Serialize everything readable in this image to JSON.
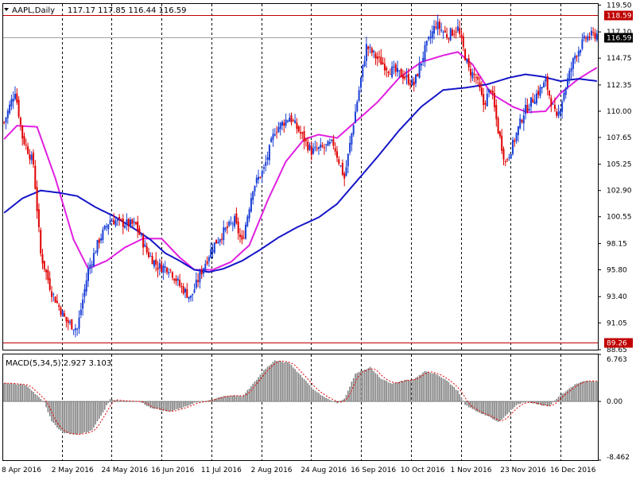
{
  "header": {
    "symbol": "AAPL,Daily",
    "ohlc": "117.17 117.85 116.44 116.59"
  },
  "macd": {
    "label": "MACD(5,34,5) 2.927 3.103"
  },
  "colors": {
    "bull_candle": "#1a3fd6",
    "bear_candle": "#e00000",
    "ma_fast": "#e020e0",
    "ma_slow": "#1616c8",
    "hline": "#c00000",
    "histogram": "#808080",
    "signal": "#e00000",
    "frame": "#000000",
    "grid": "#000000"
  },
  "chart_data": [
    {
      "type": "candlestick",
      "name": "price",
      "ylim": [
        88.65,
        119.6
      ],
      "y_ticks": [
        "119.50",
        "117.10",
        "114.75",
        "112.35",
        "110.00",
        "107.65",
        "105.25",
        "102.90",
        "100.55",
        "98.15",
        "95.80",
        "93.40",
        "91.05",
        "88.65"
      ],
      "x_ticks": [
        "8 Apr 2016",
        "2 May 2016",
        "24 May 2016",
        "16 Jun 2016",
        "11 Jul 2016",
        "2 Aug 2016",
        "24 Aug 2016",
        "16 Sep 2016",
        "10 Oct 2016",
        "1 Nov 2016",
        "23 Nov 2016",
        "16 Dec 2016"
      ],
      "horizontal_lines": [
        {
          "label": "118.59",
          "value": 118.59
        },
        {
          "label": "89.26",
          "value": 89.26
        }
      ],
      "current_price": {
        "label": "116.59",
        "value": 116.59
      },
      "ma_fast_points": [
        [
          0,
          107.5
        ],
        [
          7,
          108.7
        ],
        [
          18,
          108.6
        ],
        [
          28,
          104.0
        ],
        [
          38,
          98.5
        ],
        [
          46,
          95.9
        ],
        [
          56,
          96.6
        ],
        [
          66,
          97.8
        ],
        [
          76,
          98.6
        ],
        [
          86,
          98.6
        ],
        [
          96,
          96.9
        ],
        [
          104,
          95.8
        ],
        [
          114,
          95.8
        ],
        [
          124,
          96.5
        ],
        [
          134,
          98.0
        ],
        [
          144,
          102.0
        ],
        [
          154,
          105.5
        ],
        [
          164,
          107.5
        ],
        [
          172,
          107.9
        ],
        [
          182,
          107.6
        ],
        [
          191,
          108.9
        ],
        [
          204,
          110.8
        ],
        [
          216,
          113.0
        ],
        [
          228,
          114.4
        ],
        [
          240,
          115.0
        ],
        [
          248,
          115.3
        ],
        [
          256,
          114.2
        ],
        [
          266,
          111.6
        ],
        [
          278,
          110.4
        ],
        [
          286,
          109.9
        ],
        [
          296,
          110.0
        ],
        [
          304,
          111.6
        ],
        [
          314,
          112.9
        ],
        [
          324,
          113.9
        ]
      ],
      "ma_slow_points": [
        [
          0,
          100.9
        ],
        [
          10,
          102.2
        ],
        [
          20,
          102.9
        ],
        [
          30,
          102.7
        ],
        [
          40,
          102.4
        ],
        [
          50,
          101.4
        ],
        [
          60,
          100.6
        ],
        [
          70,
          99.6
        ],
        [
          80,
          98.5
        ],
        [
          88,
          97.3
        ],
        [
          96,
          96.6
        ],
        [
          104,
          95.8
        ],
        [
          112,
          95.6
        ],
        [
          120,
          95.9
        ],
        [
          130,
          96.6
        ],
        [
          140,
          97.6
        ],
        [
          150,
          98.7
        ],
        [
          160,
          99.6
        ],
        [
          172,
          100.5
        ],
        [
          182,
          101.7
        ],
        [
          192,
          103.6
        ],
        [
          204,
          105.9
        ],
        [
          216,
          108.3
        ],
        [
          228,
          110.4
        ],
        [
          240,
          111.9
        ],
        [
          252,
          112.1
        ],
        [
          264,
          112.4
        ],
        [
          276,
          113.0
        ],
        [
          285,
          113.3
        ],
        [
          294,
          113.1
        ],
        [
          304,
          112.7
        ],
        [
          314,
          112.9
        ],
        [
          324,
          112.7
        ]
      ],
      "candle_pivots": [
        [
          0,
          109.0
        ],
        [
          6,
          111.9
        ],
        [
          10,
          107.7
        ],
        [
          16,
          105.3
        ],
        [
          20,
          97.2
        ],
        [
          26,
          93.8
        ],
        [
          34,
          91.2
        ],
        [
          40,
          90.5
        ],
        [
          46,
          95.8
        ],
        [
          52,
          98.5
        ],
        [
          58,
          100.3
        ],
        [
          64,
          100.0
        ],
        [
          72,
          99.8
        ],
        [
          78,
          97.4
        ],
        [
          84,
          96.1
        ],
        [
          90,
          96.0
        ],
        [
          96,
          94.4
        ],
        [
          102,
          93.3
        ],
        [
          108,
          95.7
        ],
        [
          114,
          97.9
        ],
        [
          120,
          99.2
        ],
        [
          126,
          100.2
        ],
        [
          130,
          98.2
        ],
        [
          136,
          103.2
        ],
        [
          142,
          104.8
        ],
        [
          148,
          108.3
        ],
        [
          156,
          109.5
        ],
        [
          162,
          108.0
        ],
        [
          168,
          106.4
        ],
        [
          174,
          106.7
        ],
        [
          180,
          107.1
        ],
        [
          186,
          104.0
        ],
        [
          190,
          108.0
        ],
        [
          198,
          115.8
        ],
        [
          204,
          114.7
        ],
        [
          210,
          113.8
        ],
        [
          218,
          113.2
        ],
        [
          224,
          112.4
        ],
        [
          230,
          115.5
        ],
        [
          236,
          117.8
        ],
        [
          242,
          116.8
        ],
        [
          248,
          117.4
        ],
        [
          254,
          113.7
        ],
        [
          258,
          113.0
        ],
        [
          262,
          110.6
        ],
        [
          266,
          112.1
        ],
        [
          270,
          108.3
        ],
        [
          274,
          105.4
        ],
        [
          278,
          107.0
        ],
        [
          284,
          109.9
        ],
        [
          290,
          111.3
        ],
        [
          296,
          112.6
        ],
        [
          302,
          109.2
        ],
        [
          306,
          111.7
        ],
        [
          312,
          115.0
        ],
        [
          318,
          116.6
        ],
        [
          324,
          116.9
        ]
      ],
      "macd_pivots": [
        [
          0,
          2.65
        ],
        [
          12,
          2.35
        ],
        [
          22,
          -0.1
        ],
        [
          26,
          -2.9
        ],
        [
          32,
          -4.5
        ],
        [
          40,
          -4.8
        ],
        [
          48,
          -4.2
        ],
        [
          54,
          -1.6
        ],
        [
          58,
          0.3
        ],
        [
          64,
          0.1
        ],
        [
          74,
          0.0
        ],
        [
          80,
          -0.9
        ],
        [
          90,
          -1.5
        ],
        [
          98,
          -0.9
        ],
        [
          104,
          -0.2
        ],
        [
          112,
          0.1
        ],
        [
          118,
          0.6
        ],
        [
          124,
          0.9
        ],
        [
          130,
          0.7
        ],
        [
          136,
          2.5
        ],
        [
          142,
          4.5
        ],
        [
          148,
          5.9
        ],
        [
          156,
          5.5
        ],
        [
          162,
          3.8
        ],
        [
          170,
          1.5
        ],
        [
          176,
          0.5
        ],
        [
          182,
          -0.3
        ],
        [
          186,
          0.4
        ],
        [
          192,
          4.0
        ],
        [
          200,
          4.9
        ],
        [
          206,
          3.3
        ],
        [
          212,
          2.5
        ],
        [
          218,
          3.0
        ],
        [
          224,
          3.2
        ],
        [
          230,
          4.3
        ],
        [
          236,
          4.0
        ],
        [
          242,
          3.0
        ],
        [
          248,
          1.5
        ],
        [
          252,
          -0.5
        ],
        [
          258,
          -1.4
        ],
        [
          264,
          -2.1
        ],
        [
          270,
          -3.0
        ],
        [
          274,
          -2.1
        ],
        [
          280,
          -0.5
        ],
        [
          286,
          0.0
        ],
        [
          292,
          -0.5
        ],
        [
          298,
          -0.7
        ],
        [
          304,
          0.9
        ],
        [
          312,
          2.4
        ],
        [
          318,
          3.0
        ],
        [
          324,
          2.9
        ]
      ]
    },
    {
      "type": "bar",
      "name": "MACD(5,34,5)",
      "ylim": [
        -8.462,
        6.763
      ],
      "y_ticks": [
        "6.763",
        "0.00",
        "-8.462"
      ]
    }
  ]
}
